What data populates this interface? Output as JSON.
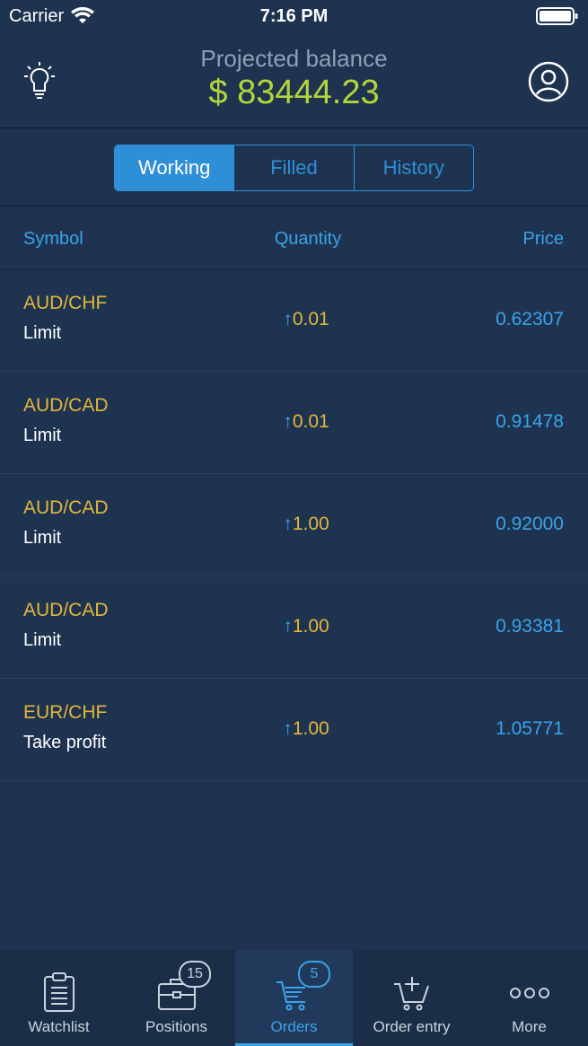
{
  "status_bar": {
    "carrier": "Carrier",
    "time": "7:16 PM"
  },
  "header": {
    "title": "Projected balance",
    "balance": "$ 83444.23"
  },
  "segments": [
    {
      "label": "Working",
      "active": true
    },
    {
      "label": "Filled",
      "active": false
    },
    {
      "label": "History",
      "active": false
    }
  ],
  "columns": {
    "symbol": "Symbol",
    "quantity": "Quantity",
    "price": "Price"
  },
  "orders": [
    {
      "symbol": "AUD/CHF",
      "type": "Limit",
      "arrow": "↑",
      "quantity": "0.01",
      "price": "0.62307"
    },
    {
      "symbol": "AUD/CAD",
      "type": "Limit",
      "arrow": "↑",
      "quantity": "0.01",
      "price": "0.91478"
    },
    {
      "symbol": "AUD/CAD",
      "type": "Limit",
      "arrow": "↑",
      "quantity": "1.00",
      "price": "0.92000"
    },
    {
      "symbol": "AUD/CAD",
      "type": "Limit",
      "arrow": "↑",
      "quantity": "1.00",
      "price": "0.93381"
    },
    {
      "symbol": "EUR/CHF",
      "type": "Take profit",
      "arrow": "↑",
      "quantity": "1.00",
      "price": "1.05771"
    }
  ],
  "tabs": [
    {
      "label": "Watchlist",
      "icon": "clipboard-icon",
      "badge": null
    },
    {
      "label": "Positions",
      "icon": "briefcase-icon",
      "badge": "15"
    },
    {
      "label": "Orders",
      "icon": "cart-icon",
      "badge": "5",
      "active": true
    },
    {
      "label": "Order entry",
      "icon": "cart-plus-icon",
      "badge": null
    },
    {
      "label": "More",
      "icon": "more-dots-icon",
      "badge": null
    }
  ],
  "colors": {
    "background": "#1e3350",
    "accent": "#2f8fd6",
    "balance": "#b4d43c",
    "symbol": "#e2b73a",
    "price": "#3aa3ea"
  }
}
